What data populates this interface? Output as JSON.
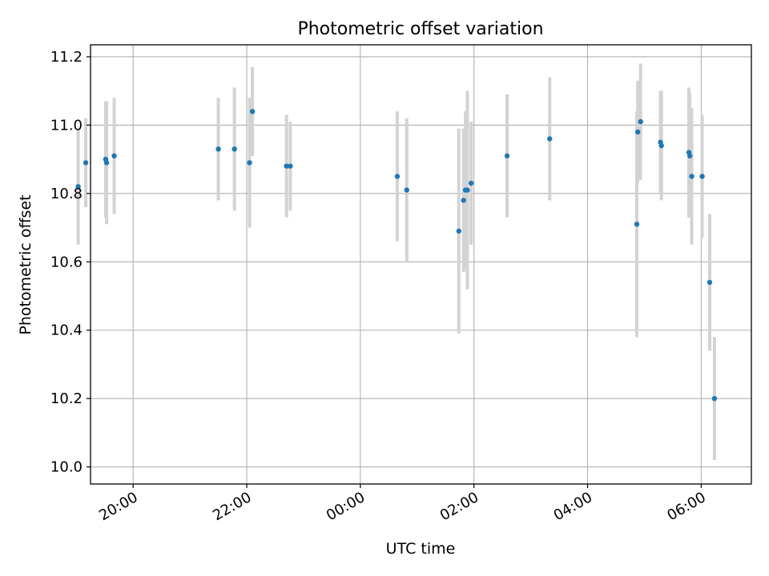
{
  "chart_data": {
    "type": "scatter",
    "title": "Photometric offset variation",
    "xlabel": "UTC time",
    "ylabel": "Photometric offset",
    "xlim": [
      "19:15",
      "06:53"
    ],
    "ylim": [
      9.95,
      11.235
    ],
    "x_ticks": [
      "20:00",
      "22:00",
      "00:00",
      "02:00",
      "04:00",
      "06:00"
    ],
    "y_ticks": [
      "10.0",
      "10.2",
      "10.4",
      "10.6",
      "10.8",
      "11.0",
      "11.2"
    ],
    "grid": true,
    "colors": {
      "marker": "#1f77b4",
      "errorbar": "#d3d3d3",
      "grid": "#b0b0b0"
    },
    "series": [
      {
        "points": [
          {
            "t": "19:02",
            "y": 10.82,
            "err": 0.17
          },
          {
            "t": "19:10",
            "y": 10.89,
            "err": 0.13
          },
          {
            "t": "19:31",
            "y": 10.9,
            "err": 0.17
          },
          {
            "t": "19:32",
            "y": 10.89,
            "err": 0.18
          },
          {
            "t": "19:40",
            "y": 10.91,
            "err": 0.17
          },
          {
            "t": "21:30",
            "y": 10.93,
            "err": 0.15
          },
          {
            "t": "21:47",
            "y": 10.93,
            "err": 0.18
          },
          {
            "t": "22:03",
            "y": 10.89,
            "err": 0.19
          },
          {
            "t": "22:06",
            "y": 11.04,
            "err": 0.13
          },
          {
            "t": "22:42",
            "y": 10.88,
            "err": 0.15
          },
          {
            "t": "22:46",
            "y": 10.88,
            "err": 0.13
          },
          {
            "t": "00:39",
            "y": 10.85,
            "err": 0.19
          },
          {
            "t": "00:49",
            "y": 10.81,
            "err": 0.21
          },
          {
            "t": "01:44",
            "y": 10.69,
            "err": 0.3
          },
          {
            "t": "01:49",
            "y": 10.78,
            "err": 0.21
          },
          {
            "t": "01:51",
            "y": 10.81,
            "err": 0.23
          },
          {
            "t": "01:53",
            "y": 10.81,
            "err": 0.29
          },
          {
            "t": "01:57",
            "y": 10.83,
            "err": 0.18
          },
          {
            "t": "02:35",
            "y": 10.91,
            "err": 0.18
          },
          {
            "t": "03:20",
            "y": 10.96,
            "err": 0.18
          },
          {
            "t": "04:52",
            "y": 10.71,
            "err": 0.33
          },
          {
            "t": "04:53",
            "y": 10.98,
            "err": 0.15
          },
          {
            "t": "04:56",
            "y": 11.01,
            "err": 0.17
          },
          {
            "t": "05:17",
            "y": 10.95,
            "err": 0.15
          },
          {
            "t": "05:18",
            "y": 10.94,
            "err": 0.16
          },
          {
            "t": "05:47",
            "y": 10.92,
            "err": 0.19
          },
          {
            "t": "05:48",
            "y": 10.91,
            "err": 0.18
          },
          {
            "t": "05:50",
            "y": 10.85,
            "err": 0.2
          },
          {
            "t": "06:01",
            "y": 10.85,
            "err": 0.18
          },
          {
            "t": "06:09",
            "y": 10.54,
            "err": 0.2
          },
          {
            "t": "06:14",
            "y": 10.2,
            "err": 0.18
          }
        ]
      }
    ]
  }
}
